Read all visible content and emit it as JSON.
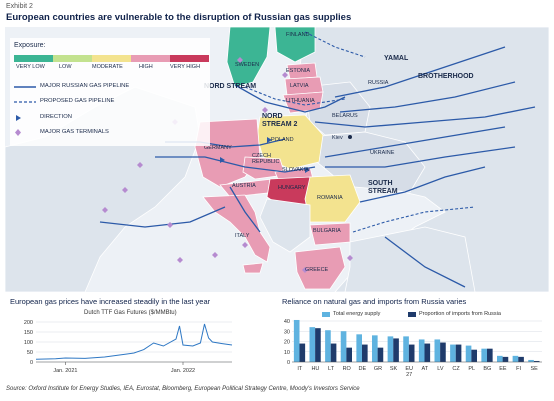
{
  "header": {
    "exhibit": "Exhibit 2",
    "title": "European countries are vulnerable to the disruption of Russian gas supplies"
  },
  "legend": {
    "exposure_title": "Exposure:",
    "levels": [
      {
        "label": "VERY LOW",
        "color": "#3cb594"
      },
      {
        "label": "LOW",
        "color": "#c3e28f"
      },
      {
        "label": "MODERATE",
        "color": "#f3e38f"
      },
      {
        "label": "HIGH",
        "color": "#e89cb4"
      },
      {
        "label": "VERY HIGH",
        "color": "#c93a5c"
      }
    ],
    "items": [
      {
        "label": "MAJOR RUSSIAN GAS PIPELINE",
        "icon": "solid-line-icon"
      },
      {
        "label": "PROPOSED GAS PIPELINE",
        "icon": "dashed-line-icon"
      },
      {
        "label": "DIRECTION",
        "icon": "direction-arrow-icon"
      },
      {
        "label": "MAJOR GAS TERMINALS",
        "icon": "diamond-icon"
      }
    ]
  },
  "map": {
    "countries": [
      {
        "name": "FINLAND",
        "exposure": "VERY LOW"
      },
      {
        "name": "SWEDEN",
        "exposure": "VERY LOW"
      },
      {
        "name": "ESTONIA",
        "exposure": "HIGH"
      },
      {
        "name": "LATVIA",
        "exposure": "HIGH"
      },
      {
        "name": "LITHUANIA",
        "exposure": "HIGH"
      },
      {
        "name": "BELARUS",
        "exposure": ""
      },
      {
        "name": "RUSSIA",
        "exposure": ""
      },
      {
        "name": "POLAND",
        "exposure": "MODERATE"
      },
      {
        "name": "GERMANY",
        "exposure": "HIGH"
      },
      {
        "name": "CZECH REPUBLIC",
        "exposure": "HIGH"
      },
      {
        "name": "SLOVAKIA",
        "exposure": "HIGH"
      },
      {
        "name": "AUSTRIA",
        "exposure": "HIGH"
      },
      {
        "name": "HUNGARY",
        "exposure": "VERY HIGH"
      },
      {
        "name": "ROMANIA",
        "exposure": "MODERATE"
      },
      {
        "name": "BULGARIA",
        "exposure": "HIGH"
      },
      {
        "name": "ITALY",
        "exposure": "HIGH"
      },
      {
        "name": "GREECE",
        "exposure": "HIGH"
      },
      {
        "name": "UKRAINE",
        "exposure": ""
      }
    ],
    "labels": {
      "finland": "FINLAND",
      "sweden": "SWEDEN",
      "estonia": "ESTONIA",
      "latvia": "LATVIA",
      "lithuania": "LITHUANIA",
      "belarus": "BELARUS",
      "russia": "RUSSIA",
      "poland": "POLAND",
      "germany": "GERMANY",
      "czech": "CZECH",
      "republic": "REPUBLIC",
      "slovakia": "SLOVAKIA",
      "austria": "AUSTRIA",
      "hungary": "HUNGARY",
      "romania": "ROMANIA",
      "bulgaria": "BULGARIA",
      "italy": "ITALY",
      "greece": "GREECE",
      "ukraine": "UKRAINE",
      "kiev": "Kiev"
    },
    "pipelines": {
      "nord_stream": "NORD STREAM",
      "nord_stream_2_line1": "NORD",
      "nord_stream_2_line2": "STREAM 2",
      "yamal": "YAMAL",
      "brotherhood": "BROTHERHOOD",
      "south_stream_line1": "SOUTH",
      "south_stream_line2": "STREAM"
    }
  },
  "chart_data": [
    {
      "type": "line",
      "title": "European gas prices have increased steadily in the last year",
      "subtitle": "Dutch TTF Gas Futures ($/MMBtu)",
      "x_labels": [
        "Jan. 2021",
        "Jan. 2022"
      ],
      "y_ticks": [
        0,
        50,
        100,
        150,
        200
      ],
      "ylim": [
        0,
        200
      ],
      "x": [
        "2020-10",
        "2020-12",
        "2021-01",
        "2021-03",
        "2021-05",
        "2021-07",
        "2021-08",
        "2021-09",
        "2021-10",
        "2021-11",
        "2021-12-10",
        "2021-12-21",
        "2022-01",
        "2022-02",
        "2022-02-25",
        "2022-03-07",
        "2022-03-20",
        "2022-04",
        "2022-05",
        "2022-06"
      ],
      "values": [
        14,
        16,
        20,
        18,
        25,
        38,
        45,
        62,
        95,
        80,
        115,
        180,
        85,
        80,
        95,
        190,
        120,
        100,
        92,
        85
      ],
      "series_name": "",
      "grid": true
    },
    {
      "type": "bar",
      "title": "Reliance on natural gas and imports from Russia varies",
      "categories": [
        "IT",
        "HU",
        "LT",
        "RO",
        "DE",
        "GR",
        "SK",
        "EU 27",
        "AT",
        "LV",
        "CZ",
        "PL",
        "BG",
        "EE",
        "FI",
        "SE"
      ],
      "y_ticks": [
        0,
        10,
        20,
        30,
        40
      ],
      "ylim": [
        0,
        40
      ],
      "series": [
        {
          "name": "Total energy supply",
          "color": "#5fb3e0",
          "values": [
            41,
            34,
            31,
            30,
            27,
            26,
            25,
            25,
            22,
            22,
            17,
            16,
            13,
            6,
            6,
            2
          ]
        },
        {
          "name": "Proportion of imports from Russia",
          "color": "#1f3b6b",
          "values": [
            18,
            33,
            18,
            14,
            17,
            14,
            23,
            17,
            18,
            19,
            17,
            12,
            13,
            5,
            5,
            1
          ]
        }
      ],
      "legend_position": "top"
    }
  ],
  "footer": {
    "source": "Source: Oxford Institute for Energy Studies, IEA, Eurostat, Bloomberg, European Political Strategy Centre, Moody's Investors Service"
  }
}
